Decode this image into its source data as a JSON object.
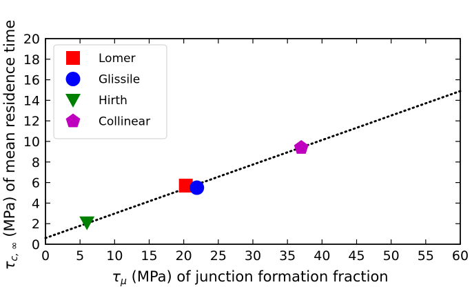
{
  "chart_data": {
    "type": "scatter",
    "title": "",
    "xlabel": {
      "symbol": "τ",
      "sub": "μ",
      "text": " (MPa) of junction formation fraction"
    },
    "ylabel": {
      "symbol": "τ",
      "sub": "c, ∞",
      "text": " (MPa) of mean residence time"
    },
    "xlim": [
      0,
      60
    ],
    "ylim": [
      0,
      20
    ],
    "xticks": [
      0,
      5,
      10,
      15,
      20,
      25,
      30,
      35,
      40,
      45,
      50,
      55,
      60
    ],
    "yticks": [
      0,
      2,
      4,
      6,
      8,
      10,
      12,
      14,
      16,
      18,
      20
    ],
    "grid": false,
    "legend_position": "top-left",
    "series": [
      {
        "name": "Lomer",
        "marker": "square",
        "color": "#ff0000",
        "x": 20.3,
        "y": 5.7
      },
      {
        "name": "Glissile",
        "marker": "circle",
        "color": "#0000ff",
        "x": 21.9,
        "y": 5.5
      },
      {
        "name": "Hirth",
        "marker": "triangle-down",
        "color": "#008000",
        "x": 6.0,
        "y": 2.1
      },
      {
        "name": "Collinear",
        "marker": "pentagon",
        "color": "#bf00bf",
        "x": 37.0,
        "y": 9.4
      }
    ],
    "fit_line": {
      "style": "dotted",
      "color": "#000000",
      "x": [
        0,
        60
      ],
      "y": [
        0.6,
        14.9
      ]
    }
  }
}
